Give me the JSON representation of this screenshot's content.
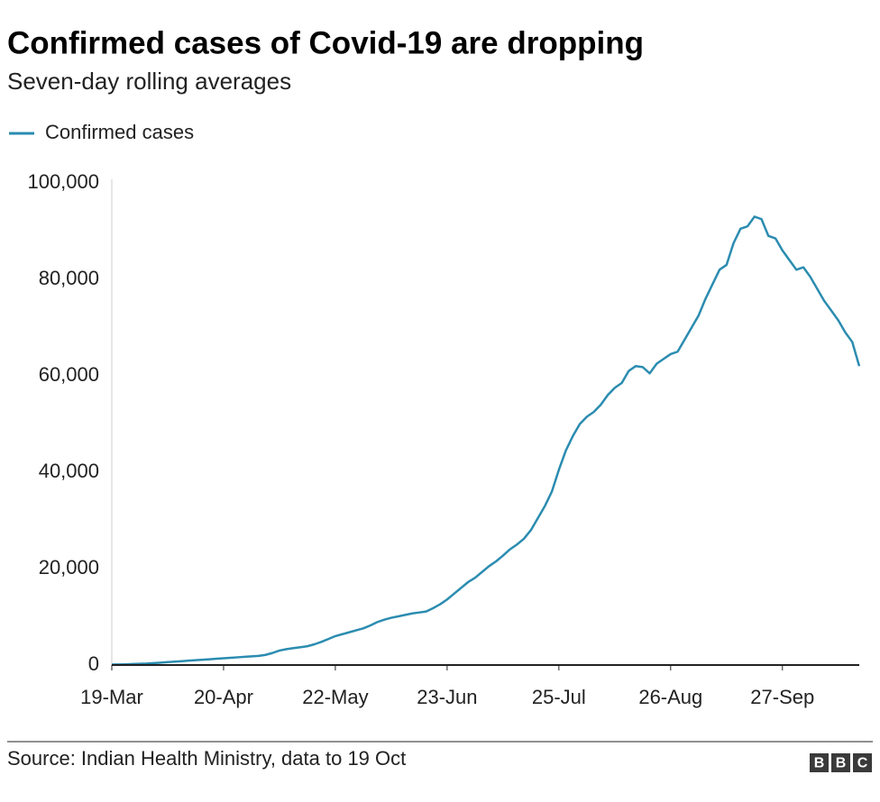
{
  "chart_data": {
    "type": "line",
    "title": "Confirmed cases of Covid-19 are dropping",
    "subtitle": "Seven-day rolling averages",
    "source": "Source: Indian Health Ministry, data to 19 Oct",
    "logo": [
      "B",
      "B",
      "C"
    ],
    "x": [
      "19-Mar",
      "21-Mar",
      "23-Mar",
      "25-Mar",
      "27-Mar",
      "29-Mar",
      "31-Mar",
      "2-Apr",
      "4-Apr",
      "6-Apr",
      "8-Apr",
      "10-Apr",
      "12-Apr",
      "14-Apr",
      "16-Apr",
      "18-Apr",
      "20-Apr",
      "22-Apr",
      "24-Apr",
      "26-Apr",
      "28-Apr",
      "30-Apr",
      "2-May",
      "4-May",
      "6-May",
      "8-May",
      "10-May",
      "12-May",
      "14-May",
      "16-May",
      "18-May",
      "20-May",
      "22-May",
      "24-May",
      "26-May",
      "28-May",
      "30-May",
      "1-Jun",
      "3-Jun",
      "5-Jun",
      "7-Jun",
      "9-Jun",
      "11-Jun",
      "13-Jun",
      "15-Jun",
      "17-Jun",
      "19-Jun",
      "21-Jun",
      "23-Jun",
      "25-Jun",
      "27-Jun",
      "29-Jun",
      "1-Jul",
      "3-Jul",
      "5-Jul",
      "7-Jul",
      "9-Jul",
      "11-Jul",
      "13-Jul",
      "15-Jul",
      "17-Jul",
      "19-Jul",
      "21-Jul",
      "23-Jul",
      "25-Jul",
      "27-Jul",
      "29-Jul",
      "31-Jul",
      "2-Aug",
      "4-Aug",
      "6-Aug",
      "8-Aug",
      "10-Aug",
      "12-Aug",
      "14-Aug",
      "16-Aug",
      "18-Aug",
      "20-Aug",
      "22-Aug",
      "24-Aug",
      "26-Aug",
      "28-Aug",
      "30-Aug",
      "1-Sep",
      "3-Sep",
      "5-Sep",
      "7-Sep",
      "9-Sep",
      "11-Sep",
      "13-Sep",
      "15-Sep",
      "17-Sep",
      "19-Sep",
      "21-Sep",
      "23-Sep",
      "25-Sep",
      "27-Sep",
      "29-Sep",
      "1-Oct",
      "3-Oct",
      "5-Oct",
      "7-Oct",
      "9-Oct",
      "11-Oct",
      "13-Oct",
      "15-Oct",
      "17-Oct",
      "19-Oct"
    ],
    "xticks": [
      "19-Mar",
      "20-Apr",
      "22-May",
      "23-Jun",
      "25-Jul",
      "26-Aug",
      "27-Sep"
    ],
    "series": [
      {
        "name": "Confirmed cases",
        "color": "#2b8cb0",
        "values": [
          100,
          120,
          150,
          200,
          250,
          300,
          400,
          500,
          600,
          700,
          800,
          900,
          1000,
          1100,
          1200,
          1300,
          1400,
          1500,
          1600,
          1700,
          1800,
          1900,
          2100,
          2500,
          3000,
          3300,
          3500,
          3700,
          3900,
          4300,
          4800,
          5400,
          6000,
          6400,
          6800,
          7200,
          7600,
          8200,
          8900,
          9400,
          9800,
          10100,
          10400,
          10700,
          10900,
          11100,
          11800,
          12600,
          13600,
          14800,
          16000,
          17200,
          18100,
          19300,
          20500,
          21500,
          22700,
          24000,
          25000,
          26200,
          28000,
          30500,
          33000,
          36000,
          40500,
          44500,
          47500,
          50000,
          51500,
          52500,
          54000,
          56000,
          57500,
          58500,
          61000,
          62000,
          61800,
          60500,
          62500,
          63500,
          64500,
          65000,
          67500,
          70000,
          72500,
          76000,
          79000,
          82000,
          83000,
          87500,
          90500,
          91000,
          93000,
          92500,
          89000,
          88500,
          86000,
          84000,
          82000,
          82500,
          80500,
          78000,
          75500,
          73500,
          71500,
          69000,
          67000,
          62000
        ]
      }
    ],
    "ylim": [
      0,
      100000
    ],
    "yticks": [
      0,
      {
        "value": 20000,
        "label": "20,000"
      },
      {
        "value": 40000,
        "label": "40,000"
      },
      {
        "value": 60000,
        "label": "60,000"
      },
      {
        "value": 80000,
        "label": "80,000"
      },
      {
        "value": 100000,
        "label": "100,000"
      }
    ],
    "grid": false
  }
}
